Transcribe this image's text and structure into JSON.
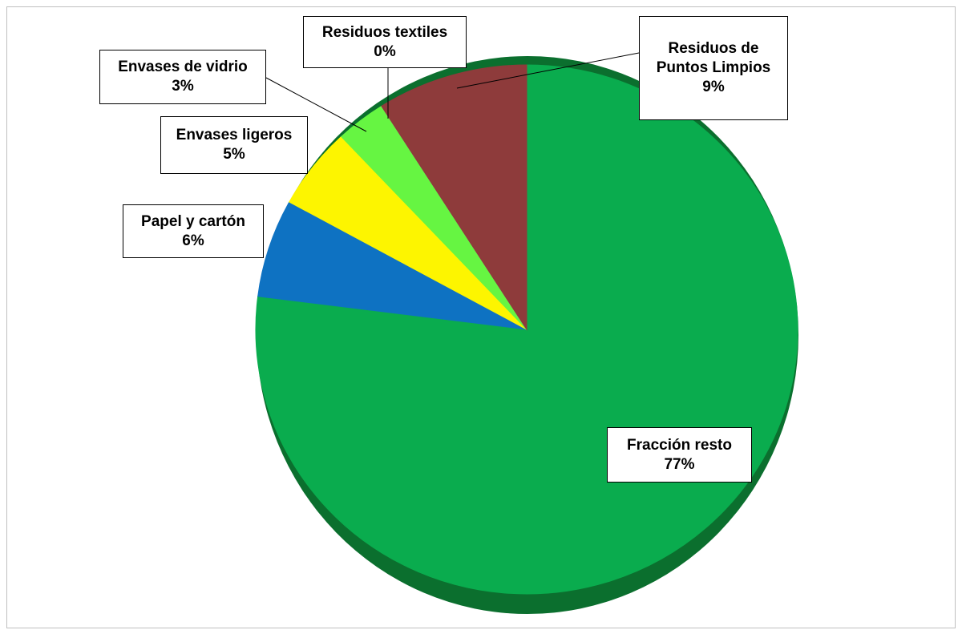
{
  "chart_data": {
    "type": "pie",
    "categories": [
      "Fracción resto",
      "Papel y cartón",
      "Envases ligeros",
      "Envases de vidrio",
      "Residuos textiles",
      "Residuos de Puntos Limpios"
    ],
    "values": [
      77,
      6,
      5,
      3,
      0,
      9
    ],
    "value_labels": [
      "77%",
      "6%",
      "5%",
      "3%",
      "0%",
      "9%"
    ],
    "colors": [
      "#0aac4e",
      "#0e72c2",
      "#fdf500",
      "#66f542",
      "#8a7f9a",
      "#8e3b3b"
    ]
  }
}
